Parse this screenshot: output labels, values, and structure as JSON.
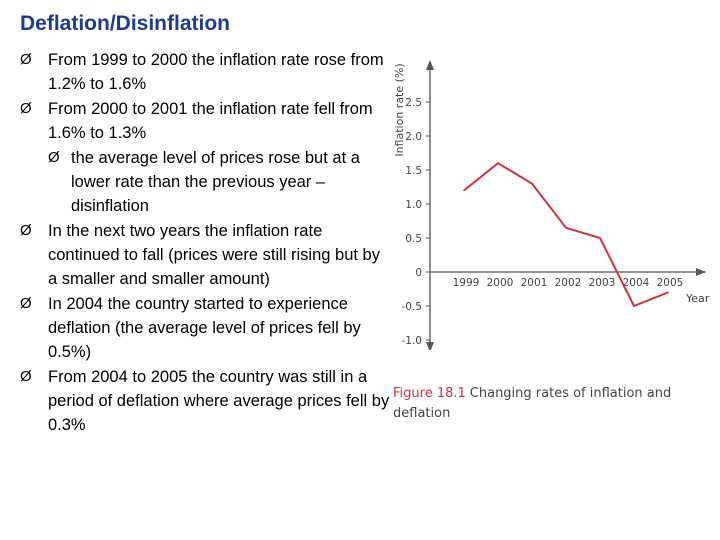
{
  "slide": {
    "title": "Deflation/Disinflation",
    "bullet_marker": "Ø"
  },
  "bullets": [
    {
      "text": "From 1999 to 2000 the inflation rate rose from 1.2% to 1.6%",
      "level": 1
    },
    {
      "text": "From 2000 to 2001 the inflation rate fell from 1.6% to 1.3%",
      "level": 1
    },
    {
      "text": "the average level of prices rose but at a lower rate than the previous year – disinflation",
      "level": 2
    },
    {
      "text": "In the next two years the inflation rate continued to fall (prices were still rising but by a smaller and smaller amount)",
      "level": 1
    },
    {
      "text": "In 2004 the country started to experience deflation (the average level of prices fell by 0.5%)",
      "level": 1
    },
    {
      "text": "From 2004 to 2005 the country was still in a period of deflation where average prices fell by 0.3%",
      "level": 1
    }
  ],
  "figure_caption": {
    "label": "Figure 18.1",
    "text": "Changing rates of inflation and deflation"
  },
  "chart_data": {
    "type": "line",
    "title": "",
    "xlabel": "Year",
    "ylabel": "Inflation rate (%)",
    "x": [
      "1999",
      "2000",
      "2001",
      "2002",
      "2003",
      "2004",
      "2005"
    ],
    "series": [
      {
        "values": [
          1.2,
          1.6,
          1.3,
          0.65,
          0.5,
          -0.5,
          -0.3
        ],
        "color": "#d4323a"
      }
    ],
    "yticks": [
      2.5,
      2.0,
      1.5,
      1.0,
      0.5,
      0,
      -0.5,
      -1.0
    ],
    "ytick_labels": [
      "2.5",
      "2.0",
      "1.5",
      "1.0",
      "0.5",
      "0",
      "-0.5",
      "-1.0"
    ],
    "ylim": [
      -1.0,
      2.5
    ],
    "grid": false,
    "axis_color": "#555555"
  }
}
